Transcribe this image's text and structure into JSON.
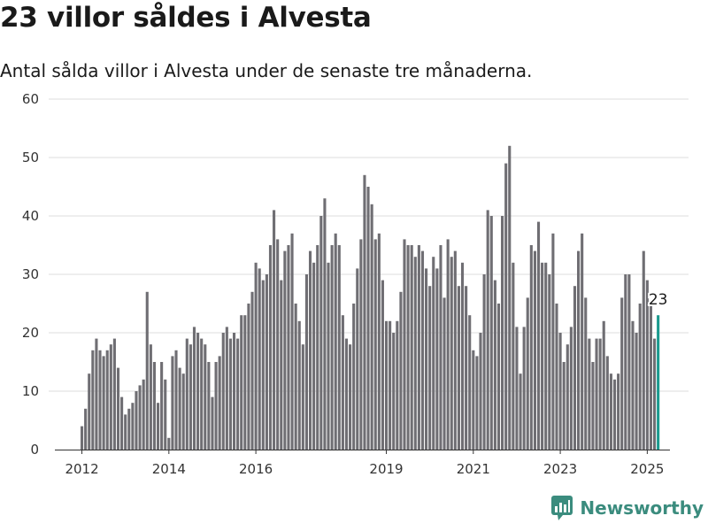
{
  "title": "23 villor såldes i Alvesta",
  "subtitle": "Antal sålda villor i Alvesta under de senaste tre månaderna.",
  "brand": "Newsworthy",
  "colors": {
    "bar": "#6f6e73",
    "highlight": "#1a9a8e",
    "grid": "#dddddd",
    "brand": "#3b8c7e"
  },
  "chart_data": {
    "type": "bar",
    "title": "",
    "xlabel": "",
    "ylabel": "",
    "ylim": [
      0,
      60
    ],
    "yticks": [
      0,
      10,
      20,
      30,
      40,
      50,
      60
    ],
    "xticks": [
      "2012",
      "2014",
      "2016",
      "2019",
      "2021",
      "2023",
      "2025"
    ],
    "grid": true,
    "first_period": "2012-01",
    "periodicity": "monthly",
    "highlight_label": "23",
    "values": [
      4,
      7,
      13,
      17,
      19,
      17,
      16,
      17,
      18,
      19,
      14,
      9,
      6,
      7,
      8,
      10,
      11,
      12,
      27,
      18,
      15,
      8,
      15,
      12,
      2,
      16,
      17,
      14,
      13,
      19,
      18,
      21,
      20,
      19,
      18,
      15,
      9,
      15,
      16,
      20,
      21,
      19,
      20,
      19,
      23,
      23,
      25,
      27,
      32,
      31,
      29,
      30,
      35,
      41,
      36,
      29,
      34,
      35,
      37,
      25,
      22,
      18,
      30,
      34,
      32,
      35,
      40,
      43,
      32,
      35,
      37,
      35,
      23,
      19,
      18,
      25,
      31,
      36,
      47,
      45,
      42,
      36,
      37,
      29,
      22,
      22,
      20,
      22,
      27,
      36,
      35,
      35,
      33,
      35,
      34,
      31,
      28,
      33,
      31,
      35,
      26,
      36,
      33,
      34,
      28,
      32,
      28,
      23,
      17,
      16,
      20,
      30,
      41,
      40,
      29,
      25,
      40,
      49,
      52,
      32,
      21,
      13,
      21,
      26,
      35,
      34,
      39,
      32,
      32,
      30,
      37,
      25,
      20,
      15,
      18,
      21,
      28,
      34,
      37,
      26,
      19,
      15,
      19,
      19,
      22,
      16,
      13,
      12,
      13,
      26,
      30,
      30,
      22,
      20,
      25,
      34,
      29,
      25,
      19,
      23
    ]
  }
}
